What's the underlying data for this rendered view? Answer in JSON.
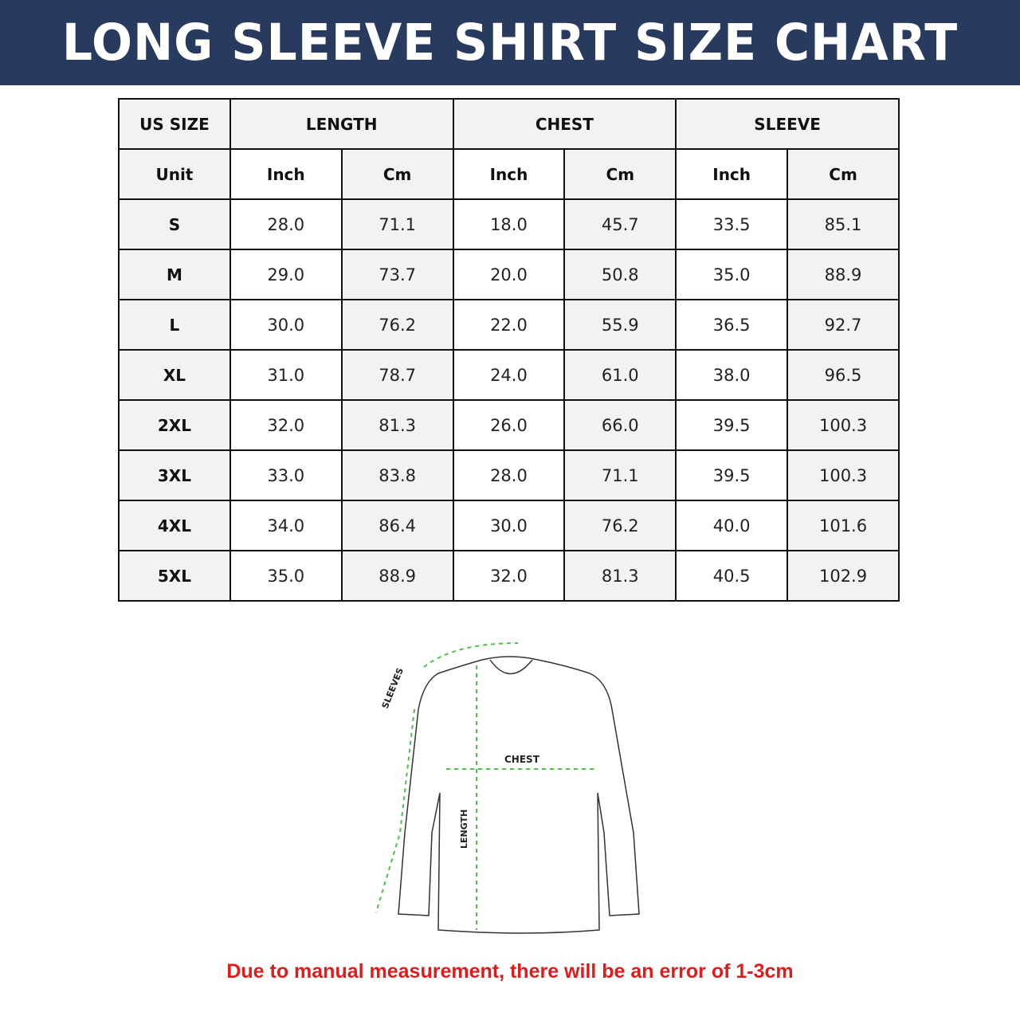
{
  "title": "LONG SLEEVE SHIRT SIZE CHART",
  "table": {
    "group_headers": [
      "US SIZE",
      "LENGTH",
      "CHEST",
      "SLEEVE"
    ],
    "unit_row": [
      "Unit",
      "Inch",
      "Cm",
      "Inch",
      "Cm",
      "Inch",
      "Cm"
    ],
    "rows": [
      [
        "S",
        "28.0",
        "71.1",
        "18.0",
        "45.7",
        "33.5",
        "85.1"
      ],
      [
        "M",
        "29.0",
        "73.7",
        "20.0",
        "50.8",
        "35.0",
        "88.9"
      ],
      [
        "L",
        "30.0",
        "76.2",
        "22.0",
        "55.9",
        "36.5",
        "92.7"
      ],
      [
        "XL",
        "31.0",
        "78.7",
        "24.0",
        "61.0",
        "38.0",
        "96.5"
      ],
      [
        "2XL",
        "32.0",
        "81.3",
        "26.0",
        "66.0",
        "39.5",
        "100.3"
      ],
      [
        "3XL",
        "33.0",
        "83.8",
        "28.0",
        "71.1",
        "39.5",
        "100.3"
      ],
      [
        "4XL",
        "34.0",
        "86.4",
        "30.0",
        "76.2",
        "40.0",
        "101.6"
      ],
      [
        "5XL",
        "35.0",
        "88.9",
        "32.0",
        "81.3",
        "40.5",
        "102.9"
      ]
    ]
  },
  "diagram": {
    "sleeves_label": "SLEEVES",
    "chest_label": "CHEST",
    "length_label": "LENGTH"
  },
  "note": "Due to manual measurement, there will be an error of 1-3cm",
  "colors": {
    "banner": "#283b5f",
    "arrows": "#4cc24c",
    "note": "#e01b1b"
  }
}
